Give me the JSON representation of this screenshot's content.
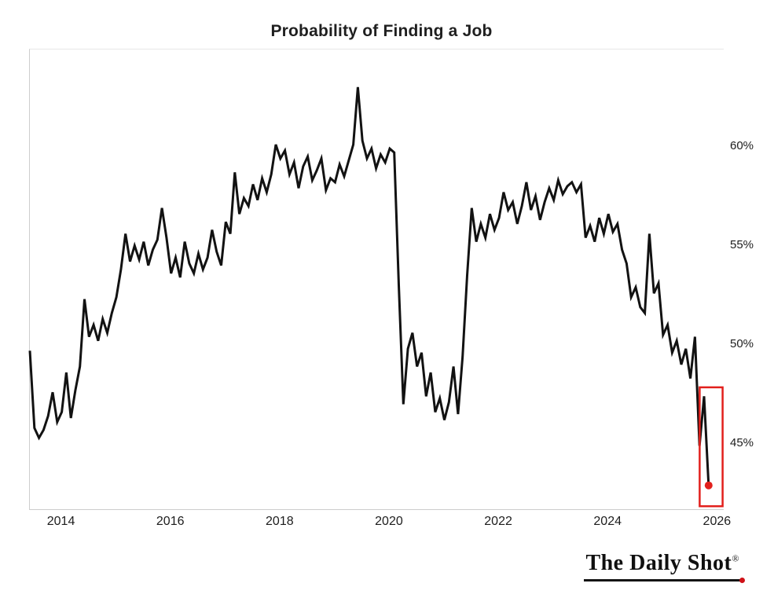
{
  "title": "Probability of Finding a Job",
  "branding": {
    "logo_text": "The Daily Shot",
    "registered_mark": "®"
  },
  "colors": {
    "line": "#121212",
    "highlight": "#e2201c",
    "logo_dot": "#cf1117",
    "axis_text": "#1d1d1d",
    "frame": "#cdcdcd"
  },
  "chart_data": {
    "type": "line",
    "title": "Probability of Finding a Job",
    "x_start_year": 2013,
    "x_start_month": 6,
    "x_end": "2025-11",
    "frequency": "monthly",
    "unit": "%",
    "grid": false,
    "legend": "none",
    "y_axis_side": "right",
    "xlim": [
      2013.417,
      2026.11
    ],
    "ylim": [
      41.7,
      64.9
    ],
    "x_ticks": [
      {
        "value": 2014,
        "label": "2014"
      },
      {
        "value": 2016,
        "label": "2016"
      },
      {
        "value": 2018,
        "label": "2018"
      },
      {
        "value": 2020,
        "label": "2020"
      },
      {
        "value": 2022,
        "label": "2022"
      },
      {
        "value": 2024,
        "label": "2024"
      },
      {
        "value": 2026,
        "label": "2026"
      }
    ],
    "y_ticks": [
      {
        "value": 45,
        "label": "45%"
      },
      {
        "value": 50,
        "label": "50%"
      },
      {
        "value": 55,
        "label": "55%"
      },
      {
        "value": 60,
        "label": "60%"
      }
    ],
    "values": [
      49.7,
      45.8,
      45.3,
      45.7,
      46.4,
      47.6,
      46.1,
      46.6,
      48.6,
      46.3,
      47.7,
      48.9,
      52.3,
      50.4,
      51.0,
      50.2,
      51.3,
      50.6,
      51.6,
      52.4,
      53.8,
      55.6,
      54.2,
      55.0,
      54.3,
      55.2,
      54.0,
      54.8,
      55.3,
      56.9,
      55.4,
      53.6,
      54.4,
      53.4,
      55.2,
      54.1,
      53.6,
      54.6,
      53.8,
      54.4,
      55.8,
      54.7,
      54.0,
      56.2,
      55.6,
      58.7,
      56.6,
      57.4,
      57.0,
      58.1,
      57.3,
      58.4,
      57.7,
      58.6,
      60.1,
      59.4,
      59.8,
      58.6,
      59.2,
      57.9,
      59.0,
      59.5,
      58.3,
      58.8,
      59.4,
      57.8,
      58.4,
      58.2,
      59.1,
      58.5,
      59.3,
      60.1,
      63.0,
      60.3,
      59.4,
      59.9,
      58.9,
      59.6,
      59.2,
      59.9,
      59.7,
      53.0,
      47.0,
      49.8,
      50.6,
      48.9,
      49.6,
      47.4,
      48.6,
      46.6,
      47.3,
      46.2,
      47.1,
      48.9,
      46.5,
      49.4,
      53.5,
      56.9,
      55.2,
      56.1,
      55.4,
      56.6,
      55.8,
      56.4,
      57.7,
      56.8,
      57.2,
      56.1,
      57.0,
      58.2,
      56.8,
      57.5,
      56.3,
      57.2,
      57.9,
      57.3,
      58.3,
      57.6,
      58.0,
      58.2,
      57.7,
      58.1,
      55.4,
      56.0,
      55.2,
      56.4,
      55.6,
      56.6,
      55.7,
      56.1,
      54.8,
      54.1,
      52.4,
      52.9,
      51.9,
      51.6,
      55.6,
      52.6,
      53.1,
      50.5,
      51.0,
      49.6,
      50.2,
      49.0,
      49.8,
      48.3,
      50.4,
      44.9,
      47.4,
      42.9
    ],
    "last_value": 42.9,
    "highlight_box": {
      "x0": 2025.67,
      "x1": 2026.09,
      "y0": 41.85,
      "y1": 47.85
    },
    "last_point_marker": true
  }
}
